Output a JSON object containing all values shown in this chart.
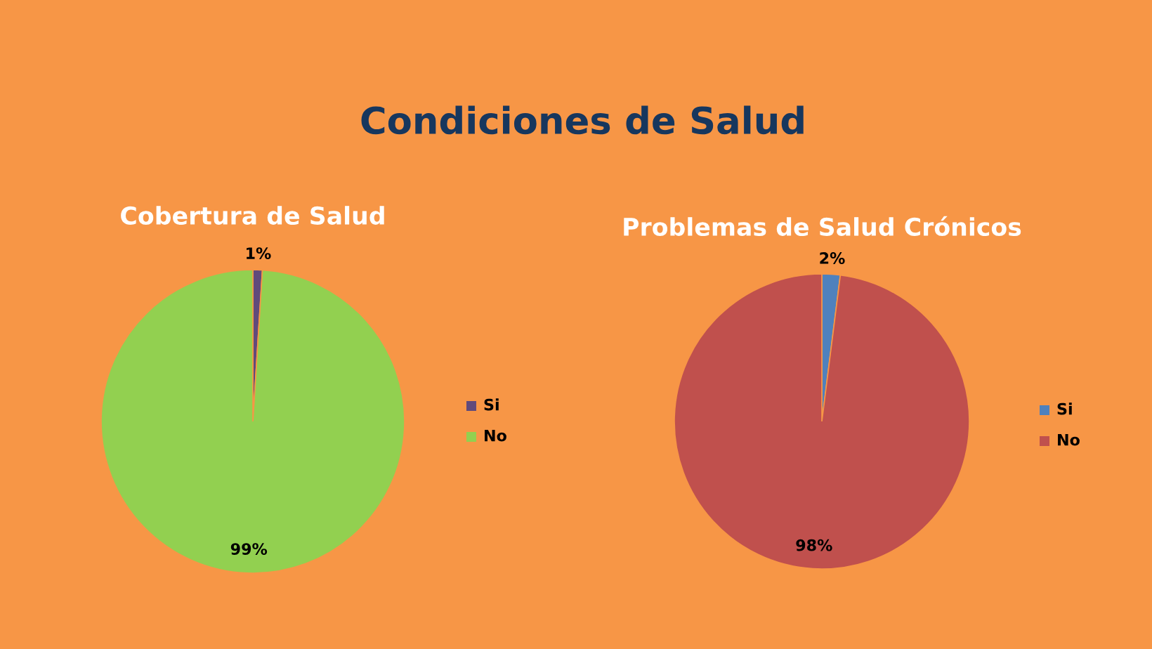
{
  "chart_data": [
    {
      "type": "other",
      "title": "Condiciones de Salud"
    },
    {
      "type": "pie",
      "title": "Cobertura de Salud",
      "categories": [
        "Si",
        "No"
      ],
      "values": [
        1,
        99
      ],
      "colors": [
        "#604a7b",
        "#92d050"
      ],
      "value_labels": [
        "1%",
        "99%"
      ],
      "legend": "right"
    },
    {
      "type": "pie",
      "title": "Problemas de Salud Crónicos",
      "categories": [
        "Si",
        "No"
      ],
      "values": [
        2,
        98
      ],
      "colors": [
        "#4f81bd",
        "#c0504d"
      ],
      "value_labels": [
        "2%",
        "98%"
      ],
      "legend": "right"
    }
  ]
}
